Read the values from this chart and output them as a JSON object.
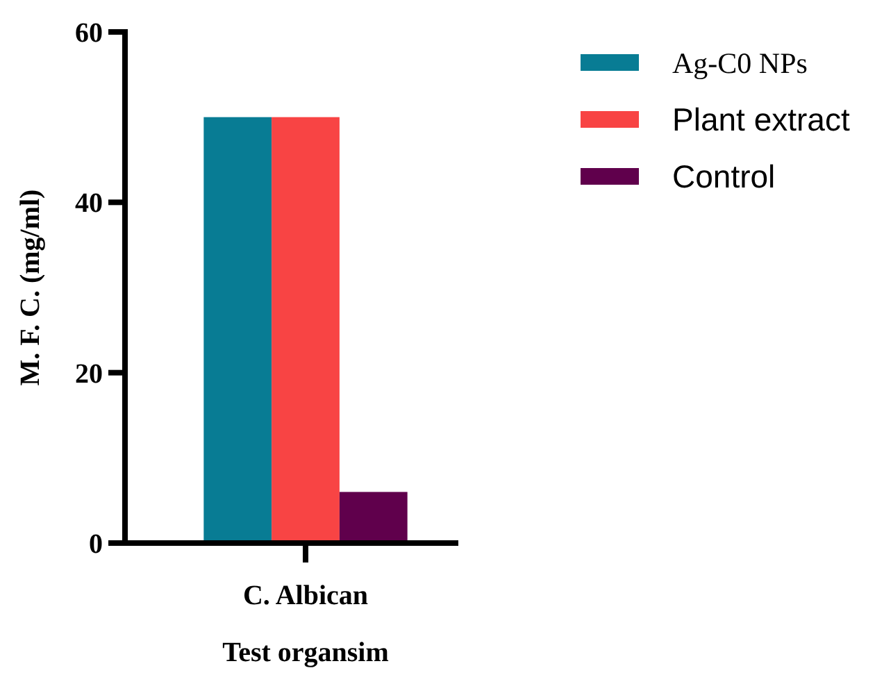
{
  "chart_data": {
    "type": "bar",
    "xlabel": "Test organsim",
    "ylabel": "M. F. C. (mg/ml)",
    "categories": [
      "C. Albican"
    ],
    "series": [
      {
        "name": "Ag-C0 NPs",
        "color": "#087c94",
        "values": [
          50
        ]
      },
      {
        "name": "Plant extract",
        "color": "#f84444",
        "values": [
          50
        ]
      },
      {
        "name": "Control",
        "color": "#60004c",
        "values": [
          6
        ]
      }
    ],
    "ylim": [
      0,
      60
    ],
    "yticks": [
      0,
      20,
      40,
      60
    ],
    "legend": "top right"
  }
}
